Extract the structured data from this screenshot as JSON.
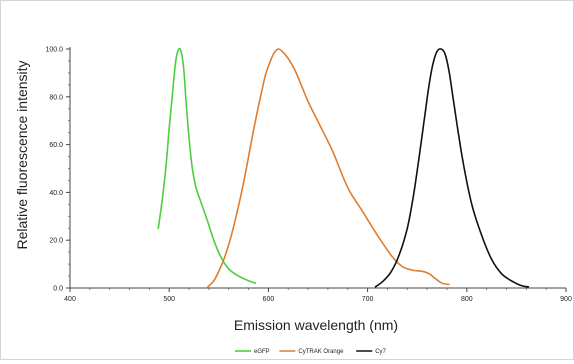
{
  "chart_data": {
    "type": "line",
    "title": "",
    "xlabel": "Emission wavelength (nm)",
    "ylabel": "Relative fluorescence intensity",
    "xlim": [
      400,
      900
    ],
    "ylim": [
      0,
      100
    ],
    "x_ticks": [
      "400",
      "500",
      "600",
      "700",
      "800",
      "900"
    ],
    "y_ticks": [
      "0.0",
      "20.0",
      "40.0",
      "60.0",
      "80.0",
      "100.0"
    ],
    "grid": false,
    "legend_position": "bottom-center",
    "series": [
      {
        "name": "eGFP",
        "color": "#4ccf3e",
        "x": [
          489,
          493,
          497,
          500,
          503,
          505,
          507,
          509,
          511,
          513,
          515,
          517,
          520,
          523,
          527,
          532,
          537,
          545,
          552,
          560,
          570,
          580,
          587
        ],
        "y": [
          25,
          37,
          52,
          67,
          80,
          89,
          96,
          99.5,
          100,
          97,
          90,
          78,
          63,
          51,
          42,
          36,
          30,
          20,
          13,
          8,
          5,
          3,
          2
        ]
      },
      {
        "name": "CyTRAK Orange",
        "color": "#e07c2c",
        "x": [
          539,
          545,
          550,
          556,
          562,
          568,
          574,
          580,
          586,
          592,
          597,
          602,
          606,
          610,
          614,
          620,
          628,
          640,
          652,
          665,
          680,
          695,
          710,
          725,
          735,
          745,
          755,
          762,
          768,
          775,
          782
        ],
        "y": [
          0.5,
          3,
          7,
          13,
          21,
          31,
          42,
          55,
          68,
          80,
          89,
          95,
          98.5,
          100,
          99,
          96,
          90,
          78,
          68,
          57,
          42,
          32,
          22,
          13,
          9,
          7.5,
          7,
          6,
          4,
          2,
          1.5
        ]
      },
      {
        "name": "Cy7",
        "color": "#111111",
        "x": [
          708,
          716,
          724,
          732,
          740,
          746,
          752,
          757,
          762,
          766,
          770,
          774,
          778,
          782,
          786,
          791,
          797,
          805,
          815,
          825,
          835,
          845,
          855,
          862
        ],
        "y": [
          0.5,
          3,
          7,
          14,
          25,
          38,
          55,
          70,
          85,
          94,
          99,
          100,
          98,
          91,
          80,
          66,
          51,
          35,
          22,
          12,
          6,
          3,
          1,
          0.5
        ]
      }
    ]
  }
}
